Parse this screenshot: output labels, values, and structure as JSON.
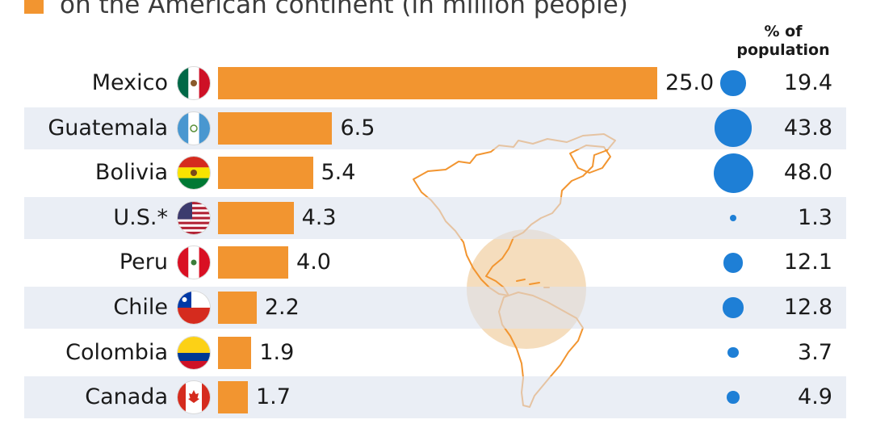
{
  "legend": {
    "label": "on the American continent (in million people)",
    "color": "#f29530"
  },
  "pct_header": {
    "line1": "% of",
    "line2": "population"
  },
  "colors": {
    "bar": "#f29530",
    "dot": "#1e7fd6",
    "row_shade": "#dce2ee",
    "map_outline": "#f29530",
    "highlight_circle": "#f3d4ac"
  },
  "chart_data": {
    "type": "bar",
    "orientation": "horizontal",
    "categories": [
      "Mexico",
      "Guatemala",
      "Bolivia",
      "U.S.*",
      "Peru",
      "Chile",
      "Colombia",
      "Canada"
    ],
    "series": [
      {
        "name": "on the American continent (in million people)",
        "values": [
          25.0,
          6.5,
          5.4,
          4.3,
          4.0,
          2.2,
          1.9,
          1.7
        ]
      },
      {
        "name": "% of population",
        "values": [
          19.4,
          43.8,
          48.0,
          1.3,
          12.1,
          12.8,
          3.7,
          4.9
        ]
      }
    ],
    "value_labels": [
      "25.0",
      "6.5",
      "5.4",
      "4.3",
      "4.0",
      "2.2",
      "1.9",
      "1.7"
    ],
    "pct_labels": [
      "19.4",
      "43.8",
      "48.0",
      "1.3",
      "12.1",
      "12.8",
      "3.7",
      "4.9"
    ],
    "flags": [
      "mexico-flag",
      "guatemala-flag",
      "bolivia-flag",
      "usa-flag",
      "peru-flag",
      "chile-flag",
      "colombia-flag",
      "canada-flag"
    ],
    "grid": false
  }
}
